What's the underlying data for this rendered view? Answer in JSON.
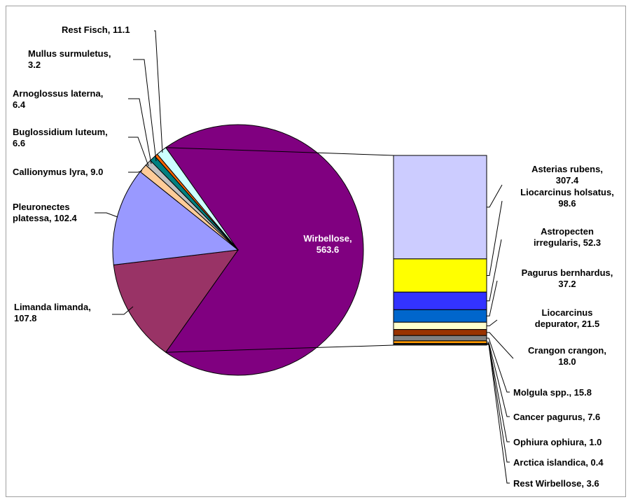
{
  "chart_data": {
    "type": "bar-of-pie",
    "pie": {
      "slices": [
        {
          "name": "Wirbellose",
          "value": 563.6,
          "color": "#800080",
          "label_line1": "Wirbellose,",
          "label_line2": "563.6"
        },
        {
          "name": "Limanda limanda",
          "value": 107.8,
          "color": "#993366",
          "label_line1": "Limanda limanda,",
          "label_line2": "107.8"
        },
        {
          "name": "Pleuronectes platessa",
          "value": 102.4,
          "color": "#9999ff",
          "label_line1": "Pleuronectes",
          "label_line2": "platessa, 102.4"
        },
        {
          "name": "Callionymus lyra",
          "value": 9.0,
          "color": "#ffcc99",
          "label_line1": "Callionymus lyra, 9.0",
          "label_line2": ""
        },
        {
          "name": "Buglossidium luteum",
          "value": 6.6,
          "color": "#c0c0c0",
          "label_line1": "Buglossidium luteum,",
          "label_line2": "6.6"
        },
        {
          "name": "Arnoglossus laterna",
          "value": 6.4,
          "color": "#008080",
          "label_line1": "Arnoglossus laterna,",
          "label_line2": "6.4"
        },
        {
          "name": "Mullus surmuletus",
          "value": 3.2,
          "color": "#ff6600",
          "label_line1": "Mullus surmuletus,",
          "label_line2": "3.2"
        },
        {
          "name": "Rest Fisch",
          "value": 11.1,
          "color": "#ccffff",
          "label_line1": "Rest Fisch, 11.1",
          "label_line2": ""
        }
      ]
    },
    "bar": {
      "total": 563.6,
      "segments": [
        {
          "name": "Asterias rubens",
          "value": 307.4,
          "color": "#ccccff",
          "label_line1": "Asterias rubens,",
          "label_line2": "307.4"
        },
        {
          "name": "Liocarcinus holsatus",
          "value": 98.6,
          "color": "#ffff00",
          "label_line1": "Liocarcinus holsatus,",
          "label_line2": "98.6"
        },
        {
          "name": "Astropecten irregularis",
          "value": 52.3,
          "color": "#3333ff",
          "label_line1": "Astropecten",
          "label_line2": "irregularis, 52.3"
        },
        {
          "name": "Pagurus bernhardus",
          "value": 37.2,
          "color": "#0066cc",
          "label_line1": "Pagurus bernhardus,",
          "label_line2": "37.2"
        },
        {
          "name": "Liocarcinus depurator",
          "value": 21.5,
          "color": "#ffffcc",
          "label_line1": "Liocarcinus",
          "label_line2": "depurator, 21.5"
        },
        {
          "name": "Crangon crangon",
          "value": 18.0,
          "color": "#993300",
          "label_line1": "Crangon crangon,",
          "label_line2": "18.0"
        },
        {
          "name": "Molgula spp.",
          "value": 15.8,
          "color": "#808080",
          "label_line1": "Molgula spp., 15.8",
          "label_line2": ""
        },
        {
          "name": "Cancer pagurus",
          "value": 7.6,
          "color": "#ff9900",
          "label_line1": "Cancer pagurus, 7.6",
          "label_line2": ""
        },
        {
          "name": "Ophiura ophiura",
          "value": 1.0,
          "color": "#666699",
          "label_line1": "Ophiura ophiura, 1.0",
          "label_line2": ""
        },
        {
          "name": "Arctica islandica",
          "value": 0.4,
          "color": "#003366",
          "label_line1": "Arctica islandica, 0.4",
          "label_line2": ""
        },
        {
          "name": "Rest Wirbellose",
          "value": 3.6,
          "color": "#333333",
          "label_line1": "Rest Wirbellose, 3.6",
          "label_line2": ""
        }
      ]
    }
  }
}
